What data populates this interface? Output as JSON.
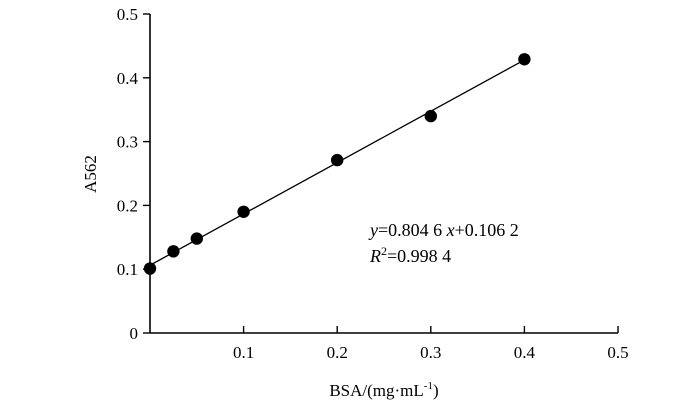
{
  "chart_data": {
    "type": "scatter",
    "xlabel": "BSA/(mg·mL⁻¹)",
    "ylabel": "A562",
    "xlim": [
      0,
      0.5
    ],
    "ylim": [
      0,
      0.5
    ],
    "x_ticks": [
      "0.1",
      "0.2",
      "0.3",
      "0.4",
      "0.5"
    ],
    "y_ticks": [
      "0",
      "0.1",
      "0.2",
      "0.3",
      "0.4",
      "0.5"
    ],
    "grid": false,
    "series": [
      {
        "x": [
          0,
          0.025,
          0.05,
          0.1,
          0.2,
          0.3,
          0.4
        ],
        "values": [
          0.101,
          0.128,
          0.148,
          0.19,
          0.271,
          0.34,
          0.429
        ]
      }
    ],
    "trendline": {
      "slope": 0.8046,
      "intercept": 0.1062
    },
    "annotations": {
      "equation": {
        "y": "y",
        "eq1": "=0.804 6 ",
        "x": "x",
        "eq2": "+0.106 2"
      },
      "r2": {
        "R": "R",
        "sup": "2",
        "eq": "=0.998 4"
      }
    },
    "colors": {
      "marker": "#000000",
      "line": "#000000"
    }
  }
}
